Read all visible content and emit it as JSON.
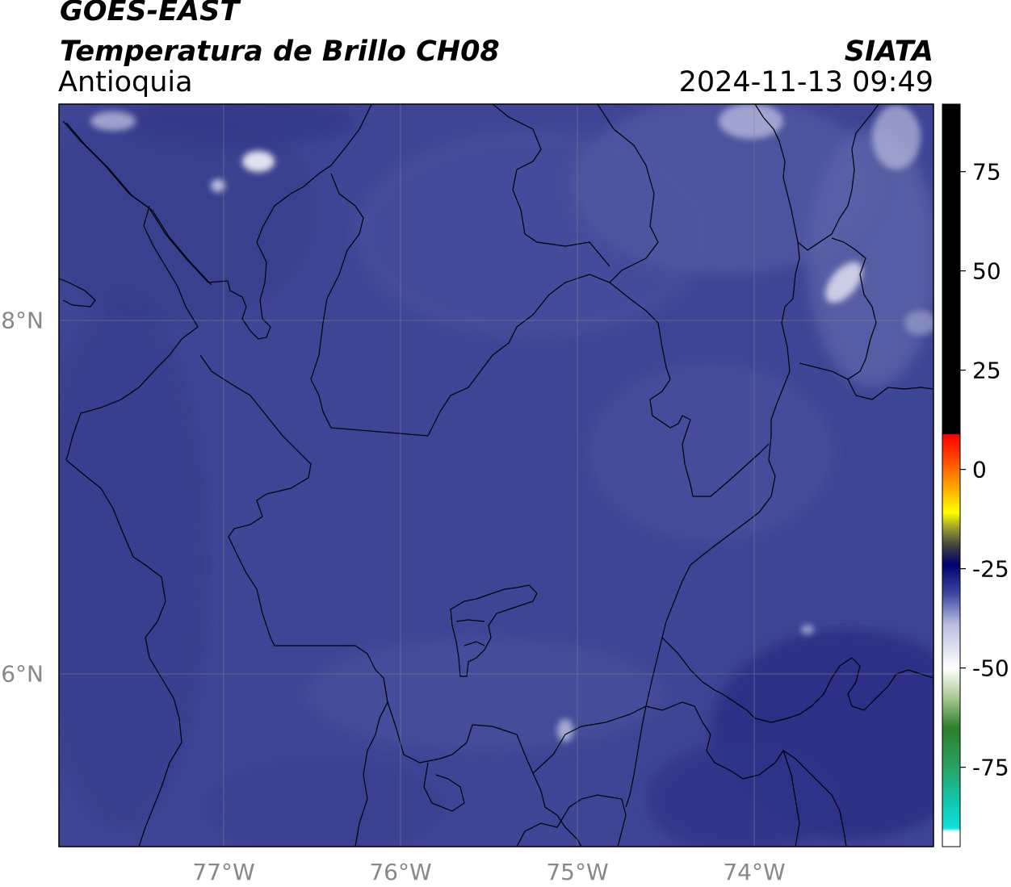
{
  "header": {
    "satellite": "GOES-EAST",
    "product": "Temperatura de Brillo CH08",
    "region": "Antioquia",
    "agency": "SIATA",
    "datetime": "2024-11-13 09:49"
  },
  "map": {
    "type": "heatmap",
    "lon_range": [
      -77.94,
      -73.0
    ],
    "lat_range": [
      5.0,
      9.2
    ],
    "lon_ticks": [
      "77°W",
      "76°W",
      "75°W",
      "74°W"
    ],
    "lat_ticks": [
      "8°N",
      "6°N"
    ],
    "grid": true,
    "base_color": "#3f4594"
  },
  "colorbar": {
    "ticks": [
      "75",
      "50",
      "25",
      "0",
      "-25",
      "-50",
      "-75"
    ],
    "range": [
      -95,
      92
    ]
  }
}
